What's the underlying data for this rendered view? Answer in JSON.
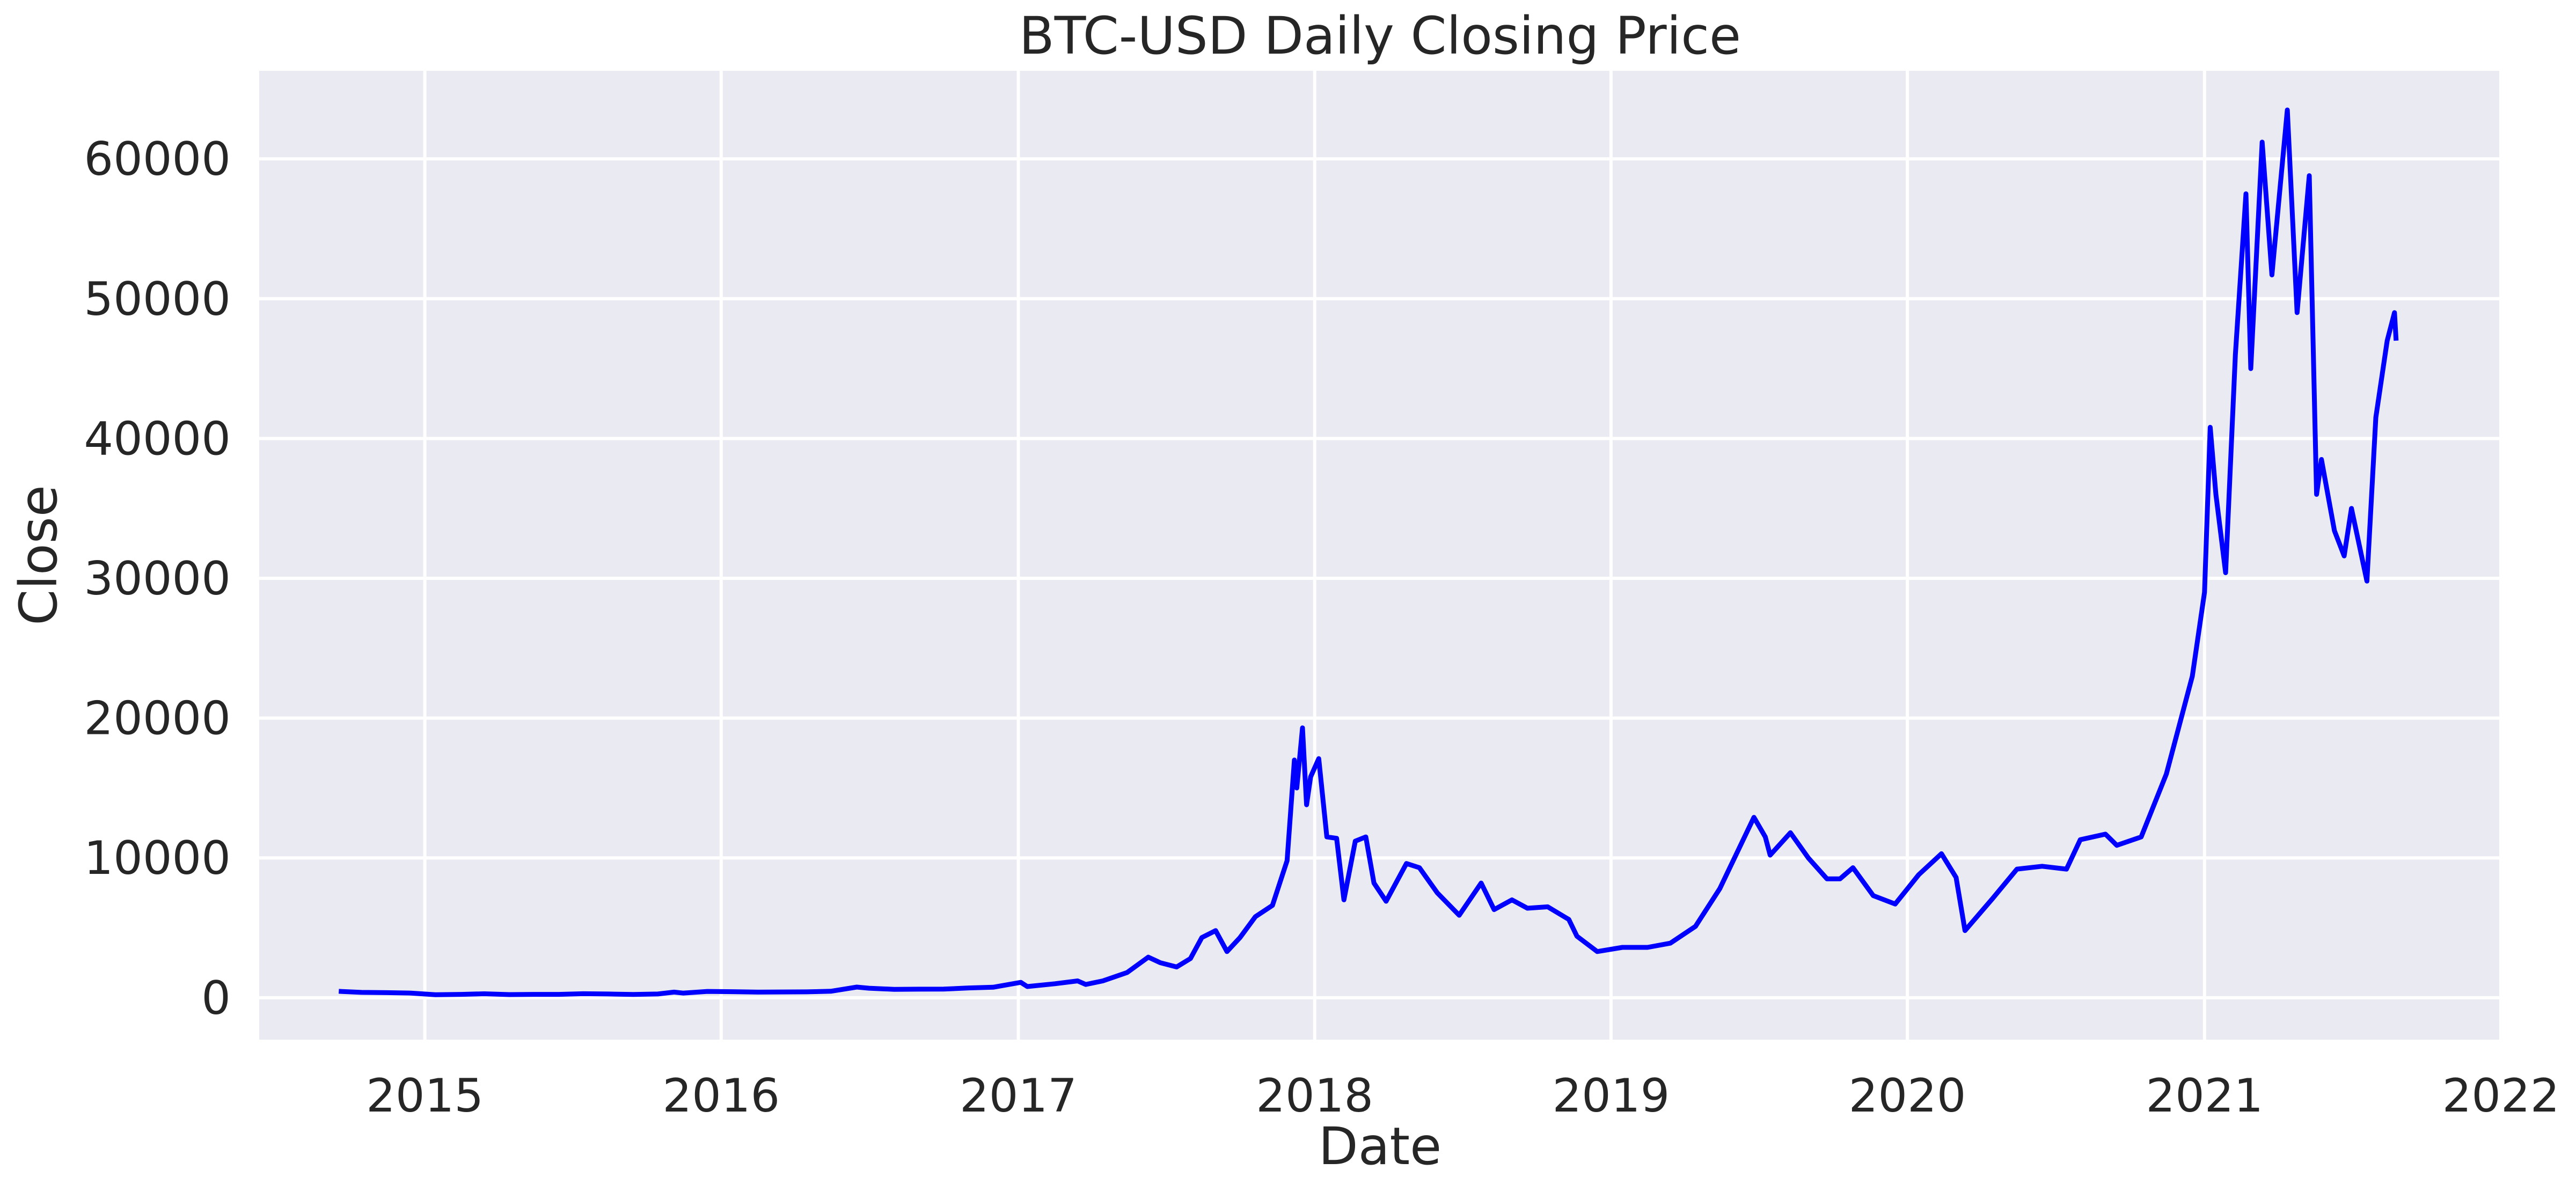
{
  "chart_data": {
    "type": "line",
    "title": "BTC-USD Daily Closing Price",
    "xlabel": "Date",
    "ylabel": "Close",
    "x_axis_type": "date",
    "xlim": [
      "2014-06-11",
      "2022-01-01"
    ],
    "ylim": [
      -3000,
      66300
    ],
    "x_ticks": [
      {
        "value": "2015-01-01",
        "label": "2015"
      },
      {
        "value": "2016-01-01",
        "label": "2016"
      },
      {
        "value": "2017-01-01",
        "label": "2017"
      },
      {
        "value": "2018-01-01",
        "label": "2018"
      },
      {
        "value": "2019-01-01",
        "label": "2019"
      },
      {
        "value": "2020-01-01",
        "label": "2020"
      },
      {
        "value": "2021-01-01",
        "label": "2021"
      },
      {
        "value": "2022-01-01",
        "label": "2022"
      }
    ],
    "y_ticks": [
      0,
      10000,
      20000,
      30000,
      40000,
      50000,
      60000
    ],
    "grid": true,
    "background_color": "#eaeaf2",
    "grid_color": "#ffffff",
    "line_color": "#0000ff",
    "series": [
      {
        "x": [
          "2014-09-17",
          "2014-10-15",
          "2014-11-15",
          "2014-12-15",
          "2015-01-14",
          "2015-02-15",
          "2015-03-15",
          "2015-04-15",
          "2015-05-15",
          "2015-06-15",
          "2015-07-15",
          "2015-08-15",
          "2015-09-15",
          "2015-10-15",
          "2015-11-04",
          "2015-11-15",
          "2015-12-15",
          "2016-01-15",
          "2016-02-15",
          "2016-03-15",
          "2016-04-15",
          "2016-05-15",
          "2016-06-16",
          "2016-07-01",
          "2016-08-01",
          "2016-09-01",
          "2016-10-01",
          "2016-11-01",
          "2016-12-01",
          "2017-01-04",
          "2017-01-12",
          "2017-02-15",
          "2017-03-15",
          "2017-03-25",
          "2017-04-15",
          "2017-05-15",
          "2017-06-10",
          "2017-06-25",
          "2017-07-15",
          "2017-08-01",
          "2017-08-15",
          "2017-09-01",
          "2017-09-15",
          "2017-10-01",
          "2017-10-20",
          "2017-11-10",
          "2017-11-28",
          "2017-12-07",
          "2017-12-10",
          "2017-12-17",
          "2017-12-22",
          "2017-12-27",
          "2018-01-06",
          "2018-01-16",
          "2018-01-28",
          "2018-02-06",
          "2018-02-20",
          "2018-03-05",
          "2018-03-15",
          "2018-03-30",
          "2018-04-24",
          "2018-05-10",
          "2018-06-01",
          "2018-06-28",
          "2018-07-25",
          "2018-08-10",
          "2018-09-01",
          "2018-09-20",
          "2018-10-15",
          "2018-11-10",
          "2018-11-20",
          "2018-12-15",
          "2019-01-15",
          "2019-02-15",
          "2019-03-15",
          "2019-04-15",
          "2019-05-15",
          "2019-06-26",
          "2019-07-10",
          "2019-07-16",
          "2019-08-10",
          "2019-09-01",
          "2019-09-24",
          "2019-10-10",
          "2019-10-26",
          "2019-11-20",
          "2019-12-17",
          "2020-01-15",
          "2020-02-12",
          "2020-03-01",
          "2020-03-12",
          "2020-04-15",
          "2020-05-15",
          "2020-06-15",
          "2020-07-15",
          "2020-08-01",
          "2020-09-01",
          "2020-09-15",
          "2020-10-15",
          "2020-11-15",
          "2020-12-01",
          "2020-12-17",
          "2021-01-01",
          "2021-01-08",
          "2021-01-15",
          "2021-01-27",
          "2021-02-08",
          "2021-02-21",
          "2021-02-27",
          "2021-03-13",
          "2021-03-25",
          "2021-04-13",
          "2021-04-25",
          "2021-05-10",
          "2021-05-19",
          "2021-05-25",
          "2021-06-10",
          "2021-06-22",
          "2021-07-01",
          "2021-07-20",
          "2021-07-31",
          "2021-08-14",
          "2021-08-23",
          "2021-08-25"
        ],
        "y": [
          457,
          380,
          360,
          330,
          210,
          240,
          280,
          225,
          240,
          240,
          285,
          265,
          230,
          265,
          400,
          330,
          450,
          430,
          400,
          410,
          420,
          460,
          760,
          680,
          600,
          610,
          615,
          700,
          750,
          1100,
          800,
          1000,
          1200,
          950,
          1200,
          1800,
          2900,
          2500,
          2200,
          2800,
          4300,
          4800,
          3300,
          4300,
          5800,
          6600,
          9800,
          17000,
          15000,
          19300,
          13800,
          15800,
          17100,
          11500,
          11400,
          7000,
          11200,
          11500,
          8200,
          6900,
          9600,
          9300,
          7500,
          5900,
          8200,
          6300,
          7000,
          6400,
          6500,
          5600,
          4400,
          3300,
          3600,
          3600,
          3900,
          5100,
          7800,
          12900,
          11500,
          10200,
          11800,
          10000,
          8500,
          8500,
          9300,
          7300,
          6700,
          8800,
          10300,
          8600,
          4800,
          7100,
          9200,
          9400,
          9200,
          11300,
          11700,
          10900,
          11500,
          16000,
          19500,
          23000,
          29000,
          40800,
          36000,
          30400,
          46000,
          57500,
          45000,
          61200,
          51700,
          63500,
          49000,
          58800,
          36000,
          38500,
          33400,
          31600,
          35000,
          29800,
          41500,
          47000,
          49000,
          47000
        ]
      }
    ]
  }
}
